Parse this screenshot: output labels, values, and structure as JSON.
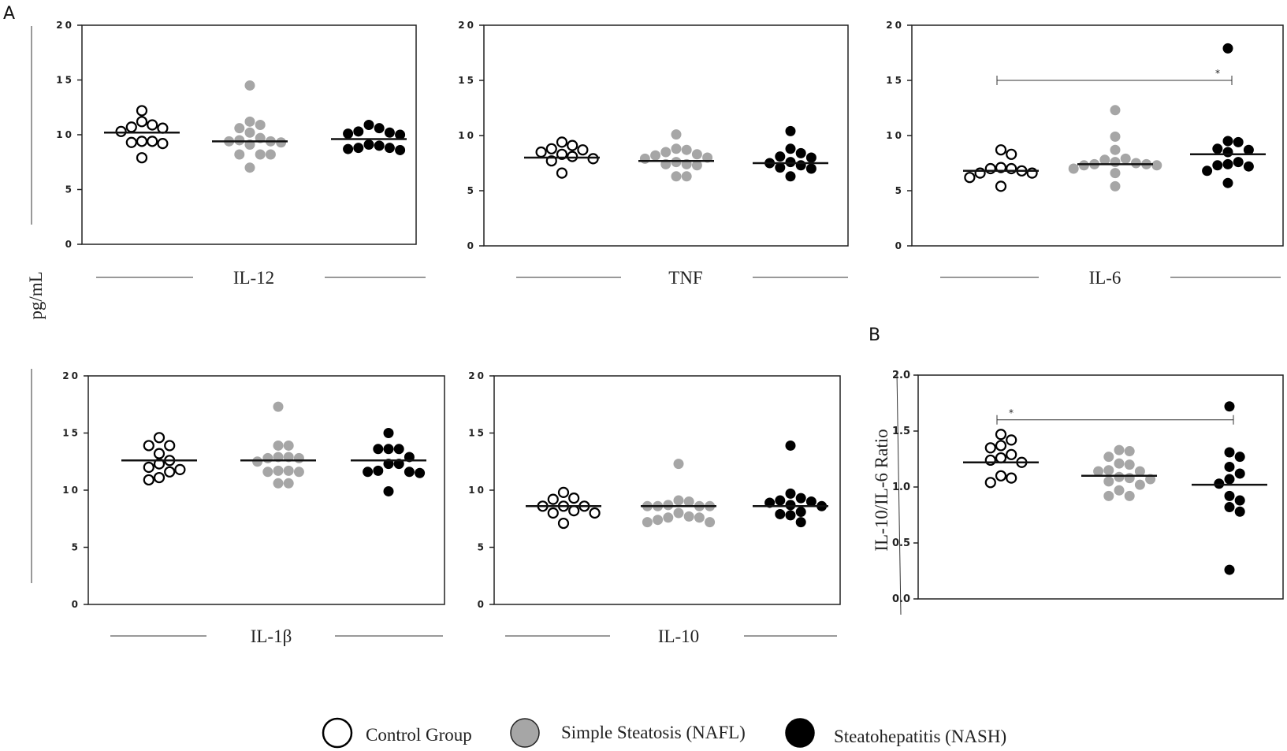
{
  "figure": {
    "panel_a_label": "A",
    "panel_b_label": "B",
    "shared_ylabel": "pg/mL",
    "legend": [
      {
        "name": "Control Group",
        "fill": "#ffffff",
        "stroke": "#000000"
      },
      {
        "name": "Simple Steatosis (NAFL)",
        "fill": "#a6a6a6",
        "stroke": "#000000"
      },
      {
        "name": "Steatohepatitis (NASH)",
        "fill": "#000000",
        "stroke": "#000000"
      }
    ]
  },
  "groups": [
    {
      "key": "control",
      "fill": "#ffffff",
      "stroke": "#000000"
    },
    {
      "key": "nafl",
      "fill": "#a6a6a6",
      "stroke": "#a6a6a6"
    },
    {
      "key": "nash",
      "fill": "#000000",
      "stroke": "#000000"
    }
  ],
  "chart_data": [
    {
      "id": "il12",
      "type": "scatter",
      "title": "IL-12",
      "ylabel": "pg/mL",
      "ylim": [
        0,
        20
      ],
      "yticks": [
        "0",
        "5",
        "10",
        "15",
        "20"
      ],
      "series": [
        {
          "name": "Control Group",
          "mean": 10.2,
          "values": [
            12.2,
            10.9,
            10.7,
            10.6,
            11.2,
            10.3,
            9.4,
            9.3,
            9.2,
            9.4,
            7.9
          ]
        },
        {
          "name": "Simple Steatosis (NAFL)",
          "mean": 9.4,
          "values": [
            14.5,
            11.2,
            10.9,
            10.6,
            10.2,
            9.7,
            9.5,
            9.4,
            9.3,
            9.4,
            9.1,
            8.2,
            8.2,
            8.2,
            7.0
          ]
        },
        {
          "name": "Steatohepatitis (NASH)",
          "mean": 9.6,
          "values": [
            10.6,
            10.2,
            10.1,
            10.0,
            10.3,
            10.9,
            9.1,
            8.8,
            8.7,
            8.6,
            8.8,
            9.0
          ]
        }
      ]
    },
    {
      "id": "tnf",
      "type": "scatter",
      "title": "TNF",
      "ylabel": "pg/mL",
      "ylim": [
        0,
        20
      ],
      "yticks": [
        "0",
        "5",
        "10",
        "15",
        "20"
      ],
      "series": [
        {
          "name": "Control Group",
          "mean": 8.0,
          "values": [
            9.1,
            8.7,
            8.1,
            7.9,
            9.4,
            8.3,
            8.5,
            8.8,
            7.7,
            6.6
          ]
        },
        {
          "name": "Simple Steatosis (NAFL)",
          "mean": 7.7,
          "values": [
            10.1,
            8.8,
            8.5,
            8.2,
            8.0,
            7.9,
            7.6,
            7.4,
            7.3,
            8.3,
            8.7,
            6.3,
            6.3,
            7.4
          ]
        },
        {
          "name": "Steatohepatitis (NASH)",
          "mean": 7.5,
          "values": [
            10.4,
            8.8,
            8.0,
            7.5,
            7.3,
            7.6,
            8.1,
            8.4,
            7.1,
            6.3,
            7.0
          ]
        }
      ]
    },
    {
      "id": "il6",
      "type": "scatter",
      "title": "IL-6",
      "ylabel": "pg/mL",
      "ylim": [
        0,
        20
      ],
      "yticks": [
        "0",
        "5",
        "10",
        "15",
        "20"
      ],
      "annotation": {
        "text": "*",
        "from_group": 0,
        "to_group": 2,
        "y": 15.0
      },
      "series": [
        {
          "name": "Control Group",
          "mean": 6.8,
          "values": [
            8.7,
            8.3,
            7.0,
            6.8,
            6.6,
            6.6,
            7.0,
            7.1,
            6.2,
            5.4
          ]
        },
        {
          "name": "Simple Steatosis (NAFL)",
          "mean": 7.4,
          "values": [
            12.3,
            9.9,
            8.7,
            7.8,
            7.6,
            7.4,
            7.3,
            7.0,
            7.5,
            7.4,
            7.9,
            7.3,
            6.6,
            5.4
          ]
        },
        {
          "name": "Steatohepatitis (NASH)",
          "mean": 8.3,
          "values": [
            17.9,
            9.4,
            8.7,
            8.5,
            8.8,
            9.5,
            7.6,
            7.3,
            7.4,
            6.8,
            7.2,
            5.7
          ]
        }
      ]
    },
    {
      "id": "il1b",
      "type": "scatter",
      "title": "IL-1β",
      "ylabel": "pg/mL",
      "ylim": [
        0,
        20
      ],
      "yticks": [
        "0",
        "5",
        "10",
        "15",
        "20"
      ],
      "series": [
        {
          "name": "Control Group",
          "mean": 12.6,
          "values": [
            14.6,
            13.9,
            13.9,
            13.2,
            12.3,
            12.6,
            12.0,
            11.8,
            11.6,
            11.1,
            10.9
          ]
        },
        {
          "name": "Simple Steatosis (NAFL)",
          "mean": 12.6,
          "values": [
            17.3,
            13.9,
            13.9,
            12.9,
            12.8,
            12.5,
            12.9,
            12.8,
            11.7,
            11.6,
            11.6,
            11.7,
            10.6,
            10.6
          ]
        },
        {
          "name": "Steatohepatitis (NASH)",
          "mean": 12.6,
          "values": [
            15.0,
            13.6,
            13.6,
            13.6,
            12.9,
            12.3,
            12.3,
            11.7,
            11.6,
            11.6,
            11.5,
            9.9
          ]
        }
      ]
    },
    {
      "id": "il10",
      "type": "scatter",
      "title": "IL-10",
      "ylabel": "pg/mL",
      "ylim": [
        0,
        20
      ],
      "yticks": [
        "0",
        "5",
        "10",
        "15",
        "20"
      ],
      "series": [
        {
          "name": "Control Group",
          "mean": 8.6,
          "values": [
            9.8,
            9.2,
            8.6,
            8.6,
            8.6,
            9.3,
            8.2,
            8.0,
            8.0,
            7.1
          ]
        },
        {
          "name": "Simple Steatosis (NAFL)",
          "mean": 8.6,
          "values": [
            12.3,
            9.0,
            8.7,
            8.6,
            8.6,
            8.6,
            8.6,
            9.1,
            8.0,
            7.7,
            7.6,
            7.6,
            7.4,
            7.2,
            7.2
          ]
        },
        {
          "name": "Steatohepatitis (NASH)",
          "mean": 8.6,
          "values": [
            13.9,
            9.7,
            9.1,
            9.0,
            8.7,
            8.6,
            8.9,
            9.3,
            8.1,
            7.9,
            7.8,
            7.2
          ]
        }
      ]
    },
    {
      "id": "ratio",
      "type": "scatter",
      "title": "",
      "ylabel": "IL-10/IL-6 Ratio",
      "ylim": [
        0,
        2
      ],
      "yticks": [
        "0.0",
        "0.5",
        "1.0",
        "1.5",
        "2.0"
      ],
      "annotation": {
        "text": "*",
        "from_group": 0,
        "to_group": 2,
        "y": 1.6
      },
      "series": [
        {
          "name": "Control Group",
          "mean": 1.22,
          "values": [
            1.47,
            1.42,
            1.35,
            1.37,
            1.29,
            1.26,
            1.24,
            1.22,
            1.1,
            1.08,
            1.04
          ]
        },
        {
          "name": "Simple Steatosis (NAFL)",
          "mean": 1.1,
          "values": [
            1.33,
            1.32,
            1.27,
            1.21,
            1.2,
            1.15,
            1.14,
            1.14,
            1.09,
            1.08,
            1.07,
            1.05,
            1.02,
            0.97,
            0.92,
            0.92
          ]
        },
        {
          "name": "Steatohepatitis (NASH)",
          "mean": 1.02,
          "values": [
            1.72,
            1.31,
            1.27,
            1.18,
            1.12,
            1.07,
            1.03,
            0.92,
            0.88,
            0.82,
            0.78,
            0.26
          ]
        }
      ]
    }
  ]
}
